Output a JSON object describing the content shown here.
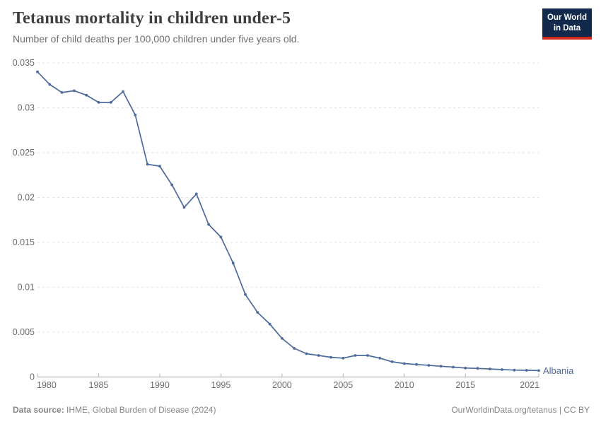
{
  "header": {
    "title": "Tetanus mortality in children under-5",
    "subtitle": "Number of child deaths per 100,000 children under five years old.",
    "logo": {
      "line1": "Our World",
      "line2": "in Data"
    }
  },
  "footer": {
    "source_label": "Data source:",
    "source_text": " IHME, Global Burden of Disease (2024)",
    "right_text": "OurWorldinData.org/tetanus | CC BY"
  },
  "colors": {
    "line": "#4C6A9C",
    "series_label": "#4C6A9C",
    "grid": "#e0e0e0",
    "axis": "#9e9e9e",
    "tick": "#b5b5b5",
    "axis_text": "#6b6b6b",
    "logo_navy": "#12294b",
    "logo_red": "#cf2a1c"
  },
  "chart_data": {
    "type": "line",
    "title": "Tetanus mortality in children under-5",
    "xlabel": "",
    "ylabel": "",
    "xlim": [
      1980,
      2021
    ],
    "ylim": [
      0,
      0.035
    ],
    "grid": "horizontal-dashed",
    "legend_position": "end-of-line-label",
    "x_ticks": [
      1980,
      1985,
      1990,
      1995,
      2000,
      2005,
      2010,
      2015,
      2021
    ],
    "y_ticks": [
      0,
      0.005,
      0.01,
      0.015,
      0.02,
      0.025,
      0.03,
      0.035
    ],
    "y_tick_labels": [
      "0",
      "0.005",
      "0.01",
      "0.015",
      "0.02",
      "0.025",
      "0.03",
      "0.035"
    ],
    "series": [
      {
        "name": "Albania",
        "color": "#4C6A9C",
        "x": [
          1980,
          1981,
          1982,
          1983,
          1984,
          1985,
          1986,
          1987,
          1988,
          1989,
          1990,
          1991,
          1992,
          1993,
          1994,
          1995,
          1996,
          1997,
          1998,
          1999,
          2000,
          2001,
          2002,
          2003,
          2004,
          2005,
          2006,
          2007,
          2008,
          2009,
          2010,
          2011,
          2012,
          2013,
          2014,
          2015,
          2016,
          2017,
          2018,
          2019,
          2020,
          2021
        ],
        "values": [
          0.034,
          0.0326,
          0.0317,
          0.0319,
          0.0314,
          0.0306,
          0.0306,
          0.0318,
          0.0292,
          0.0237,
          0.0235,
          0.0214,
          0.0189,
          0.0204,
          0.017,
          0.0156,
          0.0127,
          0.0092,
          0.0072,
          0.0059,
          0.0043,
          0.0032,
          0.0026,
          0.0024,
          0.0022,
          0.0021,
          0.0024,
          0.0024,
          0.0021,
          0.0017,
          0.0015,
          0.0014,
          0.0013,
          0.0012,
          0.0011,
          0.001,
          0.00096,
          0.0009,
          0.00083,
          0.00077,
          0.00075,
          0.00072
        ]
      }
    ]
  }
}
